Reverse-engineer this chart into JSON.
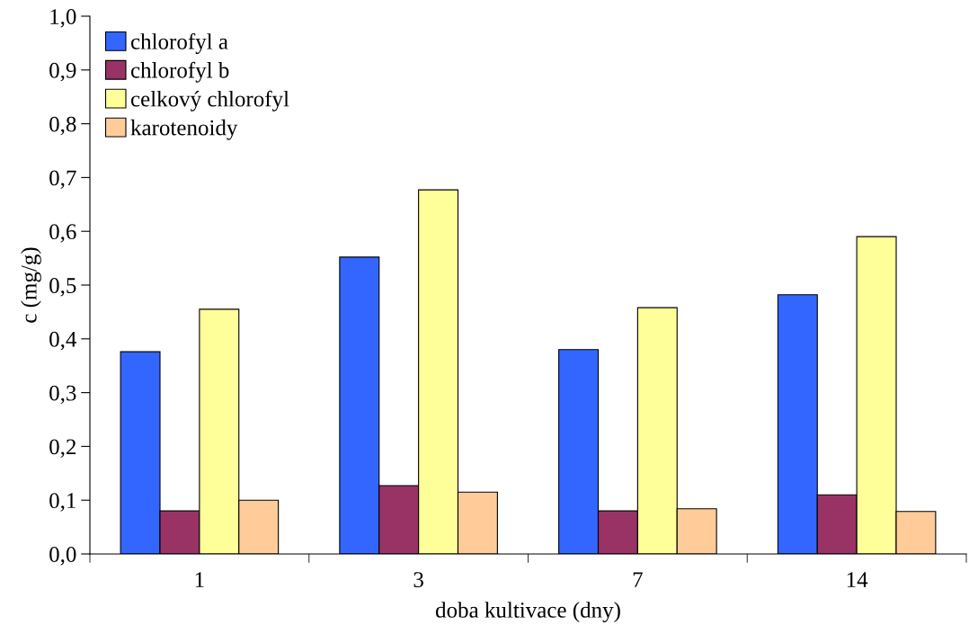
{
  "chart_data": {
    "type": "bar",
    "xlabel": "doba kultivace (dny)",
    "ylabel": "c (mg/g)",
    "categories": [
      "1",
      "3",
      "7",
      "14"
    ],
    "series": [
      {
        "name": "chlorofyl a",
        "color": "#3366ff",
        "values": [
          0.376,
          0.552,
          0.38,
          0.482
        ]
      },
      {
        "name": "chlorofyl b",
        "color": "#993366",
        "values": [
          0.08,
          0.127,
          0.08,
          0.11
        ]
      },
      {
        "name": "celkový chlorofyl",
        "color": "#ffff99",
        "values": [
          0.455,
          0.677,
          0.458,
          0.59
        ]
      },
      {
        "name": "karotenoidy",
        "color": "#ffcc99",
        "values": [
          0.1,
          0.115,
          0.084,
          0.079
        ]
      }
    ],
    "ylim": [
      0,
      1.0
    ],
    "yticks": [
      {
        "value": 0,
        "label": "0,0"
      },
      {
        "value": 0.1,
        "label": "0,1"
      },
      {
        "value": 0.2,
        "label": "0,2"
      },
      {
        "value": 0.3,
        "label": "0,3"
      },
      {
        "value": 0.4,
        "label": "0,4"
      },
      {
        "value": 0.5,
        "label": "0,5"
      },
      {
        "value": 0.6,
        "label": "0,6"
      },
      {
        "value": 0.7,
        "label": "0,7"
      },
      {
        "value": 0.8,
        "label": "0,8"
      },
      {
        "value": 0.9,
        "label": "0,9"
      },
      {
        "value": 1.0,
        "label": "1,0"
      }
    ],
    "grid": false,
    "legend": "top left"
  }
}
